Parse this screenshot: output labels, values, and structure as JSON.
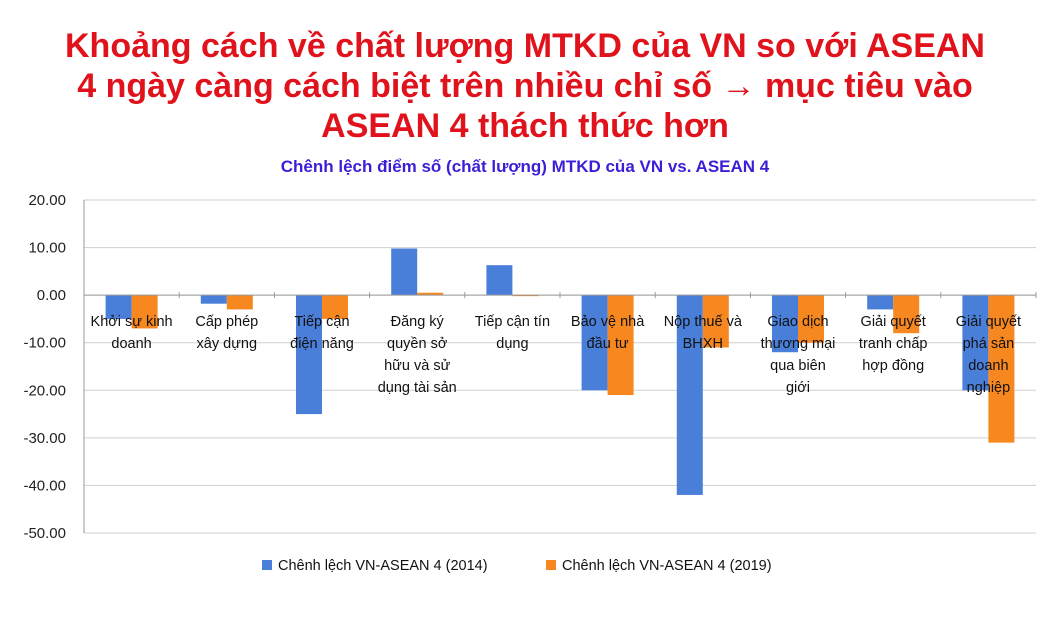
{
  "headline": {
    "line1": "Khoảng cách về chất lượng MTKD của VN so với ASEAN",
    "line2": "4 ngày càng cách biệt trên nhiều chỉ số → mục tiêu vào",
    "line3": "ASEAN 4 thách thức hơn",
    "color": "#e0121b"
  },
  "chart_data": {
    "type": "bar",
    "title": "Chênh lệch điểm số (chất lượng) MTKD của VN vs. ASEAN 4",
    "title_color": "#3b1fd6",
    "ylim": [
      -50,
      20
    ],
    "yticks": [
      "20.00",
      "10.00",
      "0.00",
      "-10.00",
      "-20.00",
      "-30.00",
      "-40.00",
      "-50.00"
    ],
    "grid": true,
    "legend_position": "bottom",
    "categories": [
      [
        "Khởi sự kinh",
        "doanh"
      ],
      [
        "Cấp phép",
        "xây dựng"
      ],
      [
        "Tiếp cận",
        "điện năng"
      ],
      [
        "Đăng ký",
        "quyền sở",
        "hữu và sử",
        "dụng tài sản"
      ],
      [
        "Tiếp cận tín",
        "dụng"
      ],
      [
        "Bảo vệ nhà",
        "đầu tư"
      ],
      [
        "Nộp thuế và",
        "BHXH"
      ],
      [
        "Giao dịch",
        "thương mại",
        "qua biên",
        "giới"
      ],
      [
        "Giải quyết",
        "tranh chấp",
        "hợp đồng"
      ],
      [
        "Giải quyết",
        "phá sản",
        "doanh",
        "nghiệp"
      ]
    ],
    "series": [
      {
        "name": "Chênh lệch VN-ASEAN 4 (2014)",
        "color": "#4a7fd9",
        "values": [
          -5.0,
          -1.8,
          -25.0,
          9.8,
          6.3,
          -20.0,
          -42.0,
          -12.0,
          -3.0,
          -20.0
        ]
      },
      {
        "name": "Chênh lệch VN-ASEAN 4 (2019)",
        "color": "#f7871f",
        "values": [
          -7.0,
          -3.0,
          -5.0,
          0.5,
          0.0,
          -21.0,
          -11.0,
          -10.0,
          -8.0,
          -31.0
        ]
      }
    ]
  }
}
